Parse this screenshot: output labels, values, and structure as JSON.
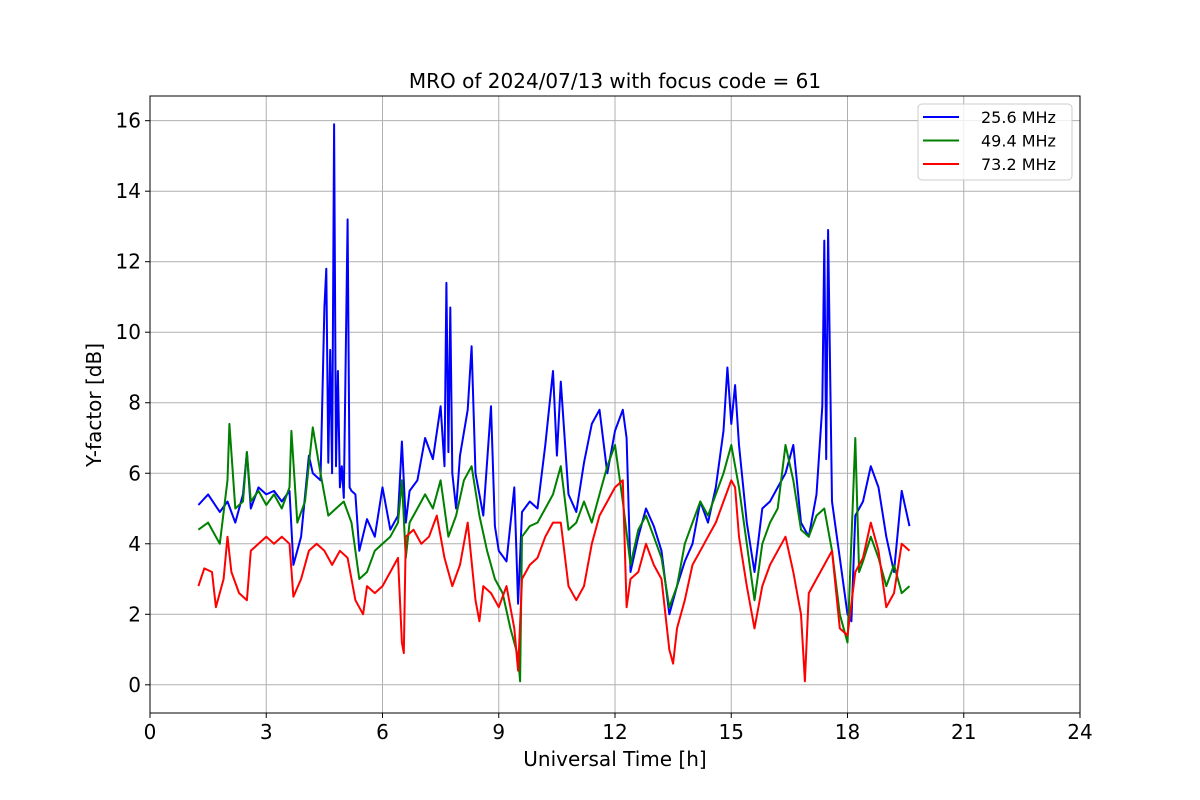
{
  "chart_data": {
    "type": "line",
    "title": "MRO of 2024/07/13 with focus code = 61",
    "xlabel": "Universal Time [h]",
    "ylabel": "Y-factor [dB]",
    "xlim": [
      0,
      24
    ],
    "ylim": [
      -0.8,
      16.7
    ],
    "xticks": [
      0,
      3,
      6,
      9,
      12,
      15,
      18,
      21,
      24
    ],
    "yticks": [
      0,
      2,
      4,
      6,
      8,
      10,
      12,
      14,
      16
    ],
    "grid": true,
    "legend_position": "top-right",
    "series": [
      {
        "name": "25.6 MHz",
        "color": "#0000ff",
        "x": [
          1.25,
          1.5,
          1.8,
          2.0,
          2.2,
          2.4,
          2.5,
          2.6,
          2.8,
          3.0,
          3.2,
          3.4,
          3.6,
          3.7,
          3.9,
          4.1,
          4.2,
          4.4,
          4.5,
          4.55,
          4.6,
          4.65,
          4.7,
          4.75,
          4.8,
          4.85,
          4.9,
          4.95,
          5.0,
          5.1,
          5.15,
          5.2,
          5.3,
          5.4,
          5.6,
          5.8,
          6.0,
          6.2,
          6.4,
          6.5,
          6.6,
          6.7,
          6.9,
          7.1,
          7.3,
          7.5,
          7.6,
          7.65,
          7.7,
          7.75,
          7.8,
          7.9,
          8.0,
          8.2,
          8.3,
          8.4,
          8.6,
          8.8,
          8.9,
          9.0,
          9.2,
          9.4,
          9.5,
          9.6,
          9.8,
          10.0,
          10.2,
          10.4,
          10.5,
          10.6,
          10.8,
          11.0,
          11.2,
          11.4,
          11.6,
          11.8,
          12.0,
          12.2,
          12.3,
          12.4,
          12.6,
          12.8,
          13.0,
          13.2,
          13.4,
          13.6,
          13.8,
          14.0,
          14.2,
          14.4,
          14.6,
          14.8,
          14.9,
          15.0,
          15.1,
          15.2,
          15.4,
          15.6,
          15.8,
          16.0,
          16.2,
          16.4,
          16.6,
          16.8,
          17.0,
          17.2,
          17.35,
          17.4,
          17.45,
          17.5,
          17.6,
          17.8,
          18.0,
          18.1,
          18.2,
          18.4,
          18.6,
          18.8,
          19.0,
          19.2,
          19.4,
          19.6
        ],
        "y": [
          5.1,
          5.4,
          4.9,
          5.2,
          4.6,
          5.4,
          6.6,
          5.0,
          5.6,
          5.4,
          5.5,
          5.2,
          5.5,
          3.4,
          4.2,
          6.5,
          6.0,
          5.8,
          10.7,
          11.8,
          6.3,
          9.5,
          6.0,
          15.9,
          6.2,
          8.9,
          5.6,
          6.2,
          5.3,
          13.2,
          5.6,
          5.5,
          5.4,
          3.8,
          4.7,
          4.2,
          5.6,
          4.4,
          4.8,
          6.9,
          4.6,
          5.5,
          5.8,
          7.0,
          6.4,
          7.9,
          6.2,
          11.4,
          6.6,
          10.7,
          6.0,
          5.0,
          6.5,
          7.8,
          9.6,
          6.0,
          4.8,
          7.9,
          4.5,
          3.8,
          3.5,
          5.6,
          2.3,
          4.9,
          5.2,
          5.0,
          6.8,
          8.9,
          6.5,
          8.6,
          5.4,
          4.9,
          6.3,
          7.4,
          7.8,
          6.0,
          7.2,
          7.8,
          7.0,
          3.2,
          4.2,
          5.0,
          4.5,
          3.8,
          2.0,
          2.8,
          3.5,
          4.0,
          5.2,
          4.6,
          5.6,
          7.2,
          9.0,
          7.4,
          8.5,
          6.8,
          4.6,
          3.2,
          5.0,
          5.2,
          5.6,
          6.0,
          6.8,
          4.6,
          4.2,
          5.4,
          7.9,
          12.6,
          6.4,
          12.9,
          5.2,
          3.6,
          2.0,
          1.8,
          4.8,
          5.2,
          6.2,
          5.6,
          4.2,
          3.2,
          5.5,
          4.5
        ]
      },
      {
        "name": "49.4 MHz",
        "color": "#008000",
        "x": [
          1.25,
          1.5,
          1.8,
          2.0,
          2.05,
          2.2,
          2.4,
          2.5,
          2.6,
          2.8,
          3.0,
          3.2,
          3.4,
          3.6,
          3.65,
          3.8,
          4.0,
          4.2,
          4.4,
          4.6,
          4.8,
          5.0,
          5.2,
          5.4,
          5.6,
          5.8,
          6.0,
          6.2,
          6.4,
          6.5,
          6.6,
          6.7,
          6.9,
          7.1,
          7.3,
          7.5,
          7.7,
          7.9,
          8.1,
          8.3,
          8.5,
          8.7,
          8.9,
          9.1,
          9.3,
          9.5,
          9.55,
          9.6,
          9.8,
          10.0,
          10.2,
          10.4,
          10.6,
          10.8,
          11.0,
          11.2,
          11.4,
          11.6,
          11.8,
          12.0,
          12.2,
          12.4,
          12.6,
          12.8,
          13.0,
          13.2,
          13.4,
          13.6,
          13.8,
          14.0,
          14.2,
          14.4,
          14.6,
          14.8,
          15.0,
          15.2,
          15.4,
          15.6,
          15.8,
          16.0,
          16.2,
          16.4,
          16.6,
          16.8,
          17.0,
          17.2,
          17.4,
          17.6,
          17.8,
          18.0,
          18.2,
          18.3,
          18.4,
          18.6,
          18.8,
          19.0,
          19.2,
          19.4,
          19.6
        ],
        "y": [
          4.4,
          4.6,
          4.0,
          5.8,
          7.4,
          5.0,
          5.2,
          6.6,
          5.2,
          5.5,
          5.1,
          5.4,
          5.0,
          5.6,
          7.2,
          4.6,
          5.2,
          7.3,
          6.0,
          4.8,
          5.0,
          5.2,
          4.6,
          3.0,
          3.2,
          3.8,
          4.0,
          4.2,
          4.6,
          5.8,
          3.6,
          4.6,
          5.0,
          5.4,
          5.0,
          5.8,
          4.2,
          4.8,
          5.8,
          6.2,
          4.8,
          3.8,
          3.0,
          2.6,
          1.6,
          0.8,
          0.1,
          4.2,
          4.5,
          4.6,
          5.0,
          5.4,
          6.2,
          4.4,
          4.6,
          5.2,
          4.6,
          5.4,
          6.2,
          6.8,
          5.2,
          3.4,
          4.4,
          4.8,
          4.2,
          3.6,
          2.2,
          2.8,
          4.0,
          4.6,
          5.2,
          4.8,
          5.4,
          6.0,
          6.8,
          5.6,
          4.0,
          2.4,
          4.0,
          4.6,
          5.0,
          6.8,
          5.8,
          4.4,
          4.2,
          4.8,
          5.0,
          3.8,
          2.0,
          1.2,
          7.0,
          3.2,
          3.5,
          4.2,
          3.6,
          2.8,
          3.4,
          2.6,
          2.8
        ]
      },
      {
        "name": "73.2 MHz",
        "color": "#ff0000",
        "x": [
          1.25,
          1.4,
          1.6,
          1.7,
          1.9,
          2.0,
          2.1,
          2.3,
          2.5,
          2.6,
          2.8,
          3.0,
          3.2,
          3.4,
          3.6,
          3.7,
          3.9,
          4.1,
          4.3,
          4.5,
          4.7,
          4.9,
          5.1,
          5.3,
          5.5,
          5.6,
          5.8,
          6.0,
          6.2,
          6.4,
          6.5,
          6.55,
          6.6,
          6.8,
          7.0,
          7.2,
          7.4,
          7.6,
          7.8,
          8.0,
          8.2,
          8.4,
          8.5,
          8.6,
          8.8,
          9.0,
          9.2,
          9.4,
          9.5,
          9.6,
          9.8,
          10.0,
          10.2,
          10.4,
          10.6,
          10.8,
          11.0,
          11.2,
          11.4,
          11.6,
          11.8,
          12.0,
          12.2,
          12.3,
          12.4,
          12.6,
          12.8,
          13.0,
          13.2,
          13.4,
          13.5,
          13.6,
          13.8,
          14.0,
          14.2,
          14.4,
          14.6,
          14.8,
          15.0,
          15.1,
          15.2,
          15.4,
          15.6,
          15.8,
          16.0,
          16.2,
          16.4,
          16.6,
          16.8,
          16.9,
          17.0,
          17.2,
          17.4,
          17.6,
          17.8,
          18.0,
          18.2,
          18.4,
          18.6,
          18.8,
          19.0,
          19.2,
          19.4,
          19.6
        ],
        "y": [
          2.8,
          3.3,
          3.2,
          2.2,
          3.0,
          4.2,
          3.2,
          2.6,
          2.4,
          3.8,
          4.0,
          4.2,
          4.0,
          4.2,
          4.0,
          2.5,
          3.0,
          3.8,
          4.0,
          3.8,
          3.4,
          3.8,
          3.6,
          2.4,
          2.0,
          2.8,
          2.6,
          2.8,
          3.2,
          3.6,
          1.2,
          0.9,
          4.2,
          4.4,
          4.0,
          4.2,
          4.8,
          3.6,
          2.8,
          3.4,
          4.6,
          2.4,
          1.8,
          2.8,
          2.6,
          2.2,
          2.8,
          1.6,
          0.4,
          3.0,
          3.4,
          3.6,
          4.2,
          4.6,
          4.6,
          2.8,
          2.4,
          2.8,
          4.0,
          4.8,
          5.2,
          5.6,
          5.8,
          2.2,
          3.0,
          3.2,
          4.0,
          3.4,
          3.0,
          1.0,
          0.6,
          1.6,
          2.4,
          3.4,
          3.8,
          4.2,
          4.6,
          5.2,
          5.8,
          5.6,
          4.2,
          2.8,
          1.6,
          2.8,
          3.4,
          3.8,
          4.2,
          3.2,
          2.0,
          0.1,
          2.6,
          3.0,
          3.4,
          3.8,
          1.6,
          1.4,
          3.2,
          3.6,
          4.6,
          3.8,
          2.2,
          2.6,
          4.0,
          3.8
        ]
      }
    ]
  }
}
